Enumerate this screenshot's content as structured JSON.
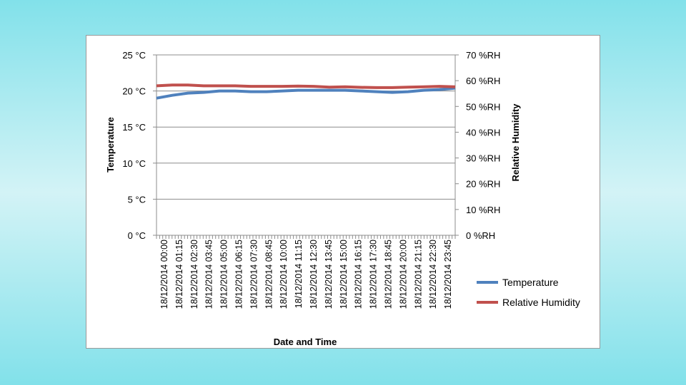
{
  "chart_data": {
    "type": "line",
    "xlabel": "Date and Time",
    "ylabel_left": "Temperature",
    "ylabel_right": "Relative Humidity",
    "left_axis": {
      "ylim": [
        0,
        25
      ],
      "ticks": [
        0,
        5,
        10,
        15,
        20,
        25
      ],
      "tick_labels": [
        "0 °C",
        "5 °C",
        "10 °C",
        "15 °C",
        "20 °C",
        "25 °C"
      ]
    },
    "right_axis": {
      "ylim": [
        0,
        70
      ],
      "ticks": [
        0,
        10,
        20,
        30,
        40,
        50,
        60,
        70
      ],
      "tick_labels": [
        "0 %RH",
        "10 %RH",
        "20 %RH",
        "30 %RH",
        "40 %RH",
        "50 %RH",
        "60 %RH",
        "70 %RH"
      ]
    },
    "x_tick_labels": [
      "18/12/2014 00:00",
      "18/12/2014 01:15",
      "18/12/2014 02:30",
      "18/12/2014 03:45",
      "18/12/2014 05:00",
      "18/12/2014 06:15",
      "18/12/2014 07:30",
      "18/12/2014 08:45",
      "18/12/2014 10:00",
      "18/12/2014 11:15",
      "18/12/2014 12:30",
      "18/12/2014 13:45",
      "18/12/2014 15:00",
      "18/12/2014 16:15",
      "18/12/2014 17:30",
      "18/12/2014 18:45",
      "18/12/2014 20:00",
      "18/12/2014 21:15",
      "18/12/2014 22:30",
      "18/12/2014 23:45"
    ],
    "grid": true,
    "legend_position": "bottom-right",
    "series": [
      {
        "name": "Temperature",
        "axis": "left",
        "color": "#4f81bd",
        "x": [
          "18/12/2014 00:00",
          "18/12/2014 01:15",
          "18/12/2014 02:30",
          "18/12/2014 03:45",
          "18/12/2014 05:00",
          "18/12/2014 06:15",
          "18/12/2014 07:30",
          "18/12/2014 08:45",
          "18/12/2014 10:00",
          "18/12/2014 11:15",
          "18/12/2014 12:30",
          "18/12/2014 13:45",
          "18/12/2014 15:00",
          "18/12/2014 16:15",
          "18/12/2014 17:30",
          "18/12/2014 18:45",
          "18/12/2014 20:00",
          "18/12/2014 21:15",
          "18/12/2014 22:30",
          "18/12/2014 23:45"
        ],
        "values": [
          19.0,
          19.4,
          19.7,
          19.8,
          20.0,
          20.0,
          19.9,
          19.9,
          20.0,
          20.1,
          20.1,
          20.1,
          20.1,
          20.0,
          19.9,
          19.8,
          19.9,
          20.1,
          20.2,
          20.4
        ]
      },
      {
        "name": "Relative Humidity",
        "axis": "right",
        "color": "#c0504d",
        "x": [
          "18/12/2014 00:00",
          "18/12/2014 01:15",
          "18/12/2014 02:30",
          "18/12/2014 03:45",
          "18/12/2014 05:00",
          "18/12/2014 06:15",
          "18/12/2014 07:30",
          "18/12/2014 08:45",
          "18/12/2014 10:00",
          "18/12/2014 11:15",
          "18/12/2014 12:30",
          "18/12/2014 13:45",
          "18/12/2014 15:00",
          "18/12/2014 16:15",
          "18/12/2014 17:30",
          "18/12/2014 18:45",
          "18/12/2014 20:00",
          "18/12/2014 21:15",
          "18/12/2014 22:30",
          "18/12/2014 23:45"
        ],
        "values": [
          58.0,
          58.3,
          58.3,
          58.0,
          58.0,
          58.0,
          57.8,
          57.8,
          57.8,
          57.9,
          57.8,
          57.5,
          57.6,
          57.4,
          57.3,
          57.3,
          57.5,
          57.6,
          57.8,
          57.6
        ]
      }
    ]
  }
}
